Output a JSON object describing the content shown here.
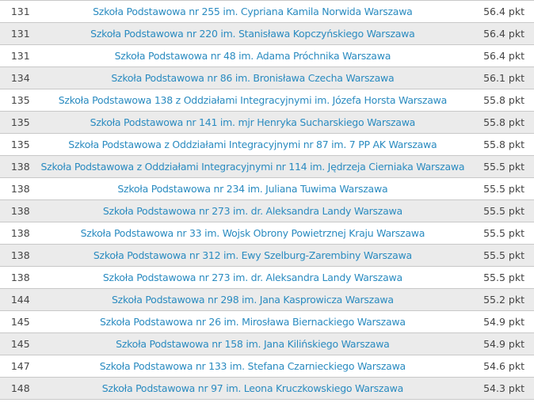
{
  "colors": {
    "link": "#2a8bc0",
    "row_alt": "#ebebeb",
    "border": "#c8c8c8"
  },
  "rows": [
    {
      "rank": "131",
      "school": "Szkoła Podstawowa nr 255 im. Cypriana Kamila Norwida Warszawa",
      "points": "56.4 pkt"
    },
    {
      "rank": "131",
      "school": "Szkoła Podstawowa nr 220 im. Stanisława Kopczyńskiego Warszawa",
      "points": "56.4 pkt"
    },
    {
      "rank": "131",
      "school": "Szkoła Podstawowa nr 48 im. Adama Próchnika Warszawa",
      "points": "56.4 pkt"
    },
    {
      "rank": "134",
      "school": "Szkoła Podstawowa nr 86 im. Bronisława Czecha Warszawa",
      "points": "56.1 pkt"
    },
    {
      "rank": "135",
      "school": "Szkoła Podstawowa 138 z Oddziałami Integracyjnymi im. Józefa Horsta Warszawa",
      "points": "55.8 pkt"
    },
    {
      "rank": "135",
      "school": "Szkoła Podstawowa nr 141 im. mjr Henryka Sucharskiego Warszawa",
      "points": "55.8 pkt"
    },
    {
      "rank": "135",
      "school": "Szkoła Podstawowa z Oddziałami Integracyjnymi nr 87 im. 7 PP AK Warszawa",
      "points": "55.8 pkt"
    },
    {
      "rank": "138",
      "school": "Szkoła Podstawowa z Oddziałami Integracyjnymi nr 114 im. Jędrzeja Cierniaka Warszawa",
      "points": "55.5 pkt"
    },
    {
      "rank": "138",
      "school": "Szkoła Podstawowa nr 234 im. Juliana Tuwima Warszawa",
      "points": "55.5 pkt"
    },
    {
      "rank": "138",
      "school": "Szkoła Podstawowa nr 273 im. dr. Aleksandra Landy Warszawa",
      "points": "55.5 pkt"
    },
    {
      "rank": "138",
      "school": "Szkoła Podstawowa nr 33 im. Wojsk Obrony Powietrznej Kraju Warszawa",
      "points": "55.5 pkt"
    },
    {
      "rank": "138",
      "school": "Szkoła Podstawowa nr 312 im. Ewy Szelburg-Zarembiny Warszawa",
      "points": "55.5 pkt"
    },
    {
      "rank": "138",
      "school": "Szkoła Podstawowa nr 273 im. dr. Aleksandra Landy Warszawa",
      "points": "55.5 pkt"
    },
    {
      "rank": "144",
      "school": "Szkoła Podstawowa nr 298 im. Jana Kasprowicza Warszawa",
      "points": "55.2 pkt"
    },
    {
      "rank": "145",
      "school": "Szkoła Podstawowa nr 26 im. Mirosława Biernackiego Warszawa",
      "points": "54.9 pkt"
    },
    {
      "rank": "145",
      "school": "Szkoła Podstawowa nr 158 im. Jana Kilińskiego Warszawa",
      "points": "54.9 pkt"
    },
    {
      "rank": "147",
      "school": "Szkoła Podstawowa nr 133 im. Stefana Czarnieckiego Warszawa",
      "points": "54.6 pkt"
    },
    {
      "rank": "148",
      "school": "Szkoła Podstawowa nr 97 im. Leona Kruczkowskiego Warszawa",
      "points": "54.3 pkt"
    }
  ]
}
